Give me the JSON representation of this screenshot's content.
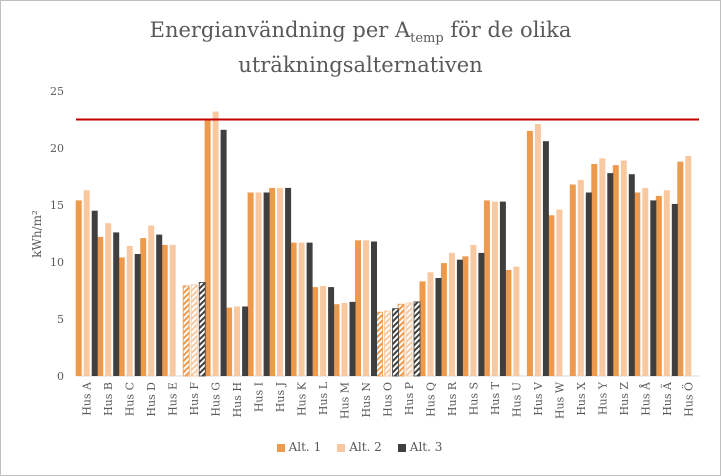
{
  "chart_data": {
    "type": "bar",
    "title_main": "Energianvändning per A",
    "title_sub": "temp",
    "title_rest": " för de olika",
    "title_line2": "uträkningsalternativen",
    "ylabel": "kWh/m²",
    "ylim": [
      0,
      25
    ],
    "yticks": [
      0,
      5,
      10,
      15,
      20,
      25
    ],
    "reference_line": 22.5,
    "reference_color": "#c00000",
    "categories": [
      "Hus A",
      "Hus B",
      "Hus C",
      "Hus D",
      "Hus E",
      "Hus F",
      "Hus G",
      "Hus H",
      "Hus I",
      "Hus J",
      "Hus K",
      "Hus L",
      "Hus M",
      "Hus N",
      "Hus O",
      "Hus P",
      "Hus Q",
      "Hus R",
      "Hus S",
      "Hus T",
      "Hus U",
      "Hus V",
      "Hus W",
      "Hus X",
      "Hus Y",
      "Hus Z",
      "Hus Å",
      "Hus Ä",
      "Hus Ö"
    ],
    "hatched_categories": [
      "Hus F",
      "Hus O",
      "Hus P"
    ],
    "series": [
      {
        "name": "Alt. 1",
        "color": "#ed9a4c",
        "values": [
          15.4,
          12.2,
          10.4,
          12.1,
          11.5,
          7.9,
          22.5,
          6.0,
          16.1,
          16.5,
          11.7,
          7.8,
          6.3,
          11.9,
          5.6,
          6.3,
          8.3,
          9.9,
          10.5,
          15.4,
          9.3,
          21.5,
          14.1,
          16.8,
          18.6,
          18.5,
          16.1,
          15.8,
          18.8
        ]
      },
      {
        "name": "Alt. 2",
        "color": "#f8c9a0",
        "values": [
          16.3,
          13.4,
          11.4,
          13.2,
          11.5,
          8.0,
          23.2,
          6.1,
          16.1,
          16.5,
          11.7,
          7.9,
          6.4,
          11.9,
          5.7,
          6.4,
          9.1,
          10.8,
          11.5,
          15.3,
          9.6,
          22.1,
          14.6,
          17.2,
          19.1,
          18.9,
          16.5,
          16.3,
          19.3
        ]
      },
      {
        "name": "Alt. 3",
        "color": "#3f3f3f",
        "values": [
          14.5,
          12.6,
          10.7,
          12.4,
          null,
          8.2,
          21.6,
          6.1,
          16.1,
          16.5,
          11.7,
          7.8,
          6.5,
          11.8,
          5.9,
          6.5,
          8.6,
          10.2,
          10.8,
          15.3,
          null,
          20.6,
          null,
          16.1,
          17.8,
          17.7,
          15.4,
          15.1,
          null
        ]
      }
    ],
    "legend_position": "bottom",
    "grid": false
  }
}
